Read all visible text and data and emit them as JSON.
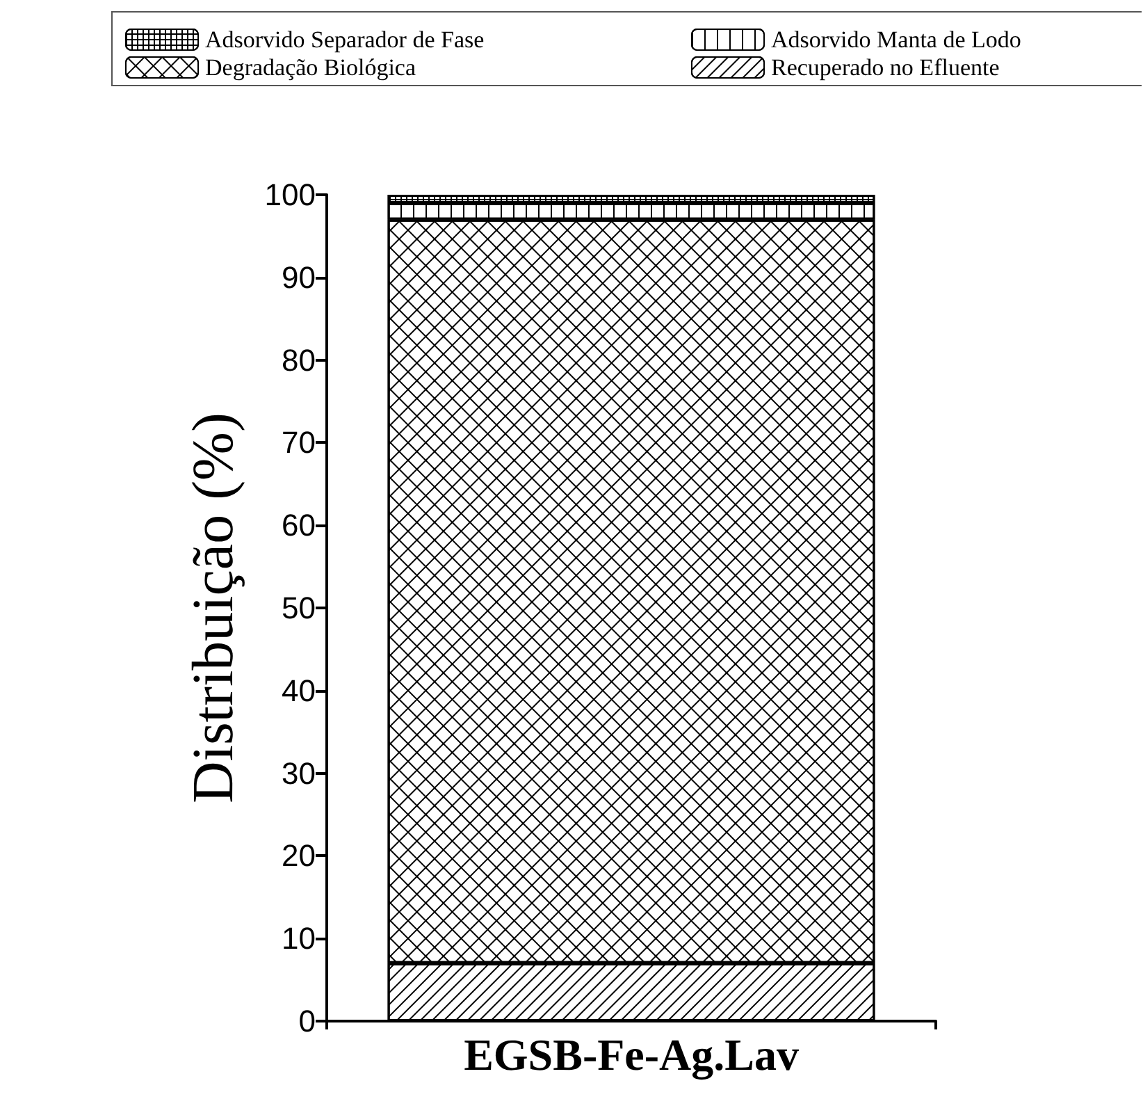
{
  "chart_data": {
    "type": "bar",
    "stacked": true,
    "categories": [
      "EGSB-Fe-Ag.Lav"
    ],
    "ylabel": "Distribuição (%)",
    "ylim": [
      0,
      100
    ],
    "yticks": [
      0,
      10,
      20,
      30,
      40,
      50,
      60,
      70,
      80,
      90,
      100
    ],
    "grid": false,
    "legend": "top",
    "series": [
      {
        "name": "Recuperado no Efluente",
        "color": "#ffffff",
        "values": [
          7
        ]
      },
      {
        "name": "Degradação Biológica",
        "color": "#ffffff",
        "values": [
          90
        ]
      },
      {
        "name": "Adsorvido Manta de Lodo",
        "color": "#ffffff",
        "values": [
          2
        ]
      },
      {
        "name": "Adsorvido Separador de Fase",
        "color": "#ffffff",
        "values": [
          1
        ]
      }
    ]
  }
}
